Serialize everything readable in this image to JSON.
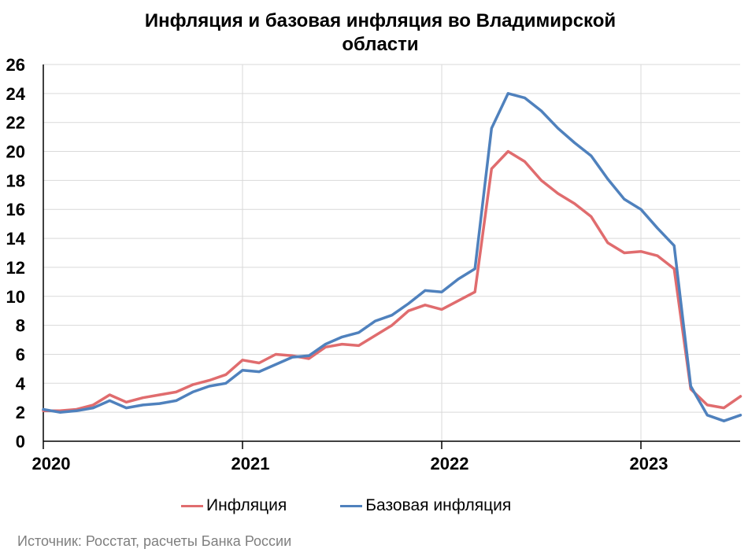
{
  "chart_data": {
    "type": "line",
    "title_line1": "Инфляция и базовая инфляция во Владимирской",
    "title_line2": "области",
    "ylim": [
      0,
      26
    ],
    "yticks": [
      0,
      2,
      4,
      6,
      8,
      10,
      12,
      14,
      16,
      18,
      20,
      22,
      24,
      26
    ],
    "year_labels": [
      "2020",
      "2021",
      "2022",
      "2023"
    ],
    "grid": true,
    "legend_position": "bottom",
    "series": [
      {
        "name": "Инфляция",
        "color": "#e06c6e",
        "values": [
          2.1,
          2.1,
          2.2,
          2.5,
          3.2,
          2.7,
          3.0,
          3.2,
          3.4,
          3.9,
          4.2,
          4.6,
          5.6,
          5.4,
          6.0,
          5.9,
          5.7,
          6.5,
          6.7,
          6.6,
          7.3,
          8.0,
          9.0,
          9.4,
          9.1,
          9.7,
          10.3,
          18.8,
          20.0,
          19.3,
          18.0,
          17.1,
          16.4,
          15.5,
          13.7,
          13.0,
          13.1,
          12.8,
          11.9,
          3.6,
          2.5,
          2.3,
          3.1
        ]
      },
      {
        "name": "Базовая инфляция",
        "color": "#4f81bd",
        "values": [
          2.2,
          2.0,
          2.1,
          2.3,
          2.8,
          2.3,
          2.5,
          2.6,
          2.8,
          3.4,
          3.8,
          4.0,
          4.9,
          4.8,
          5.3,
          5.8,
          5.9,
          6.7,
          7.2,
          7.5,
          8.3,
          8.7,
          9.5,
          10.4,
          10.3,
          11.2,
          11.9,
          21.6,
          24.0,
          23.7,
          22.8,
          21.6,
          20.6,
          19.7,
          18.1,
          16.7,
          16.0,
          14.7,
          13.5,
          3.8,
          1.8,
          1.4,
          1.8
        ]
      }
    ]
  },
  "source_note": "Источник: Росстат, расчеты Банка России"
}
